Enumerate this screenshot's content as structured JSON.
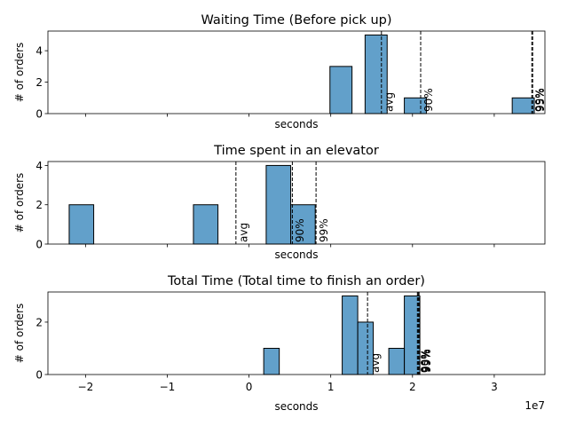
{
  "chart_data": [
    {
      "type": "bar",
      "title": "Waiting Time (Before pick up)",
      "xlabel": "seconds",
      "ylabel": "# of orders",
      "ylim": [
        0,
        5.25
      ],
      "yticks": [
        0,
        2,
        4
      ],
      "bins": [
        {
          "x0": 9.9,
          "x1": 12.6,
          "count": 3
        },
        {
          "x0": 14.2,
          "x1": 16.9,
          "count": 5
        },
        {
          "x0": 19.0,
          "x1": 21.7,
          "count": 1
        },
        {
          "x0": 32.2,
          "x1": 34.9,
          "count": 1
        }
      ],
      "vlines": [
        {
          "x": 16.2,
          "label": "avg"
        },
        {
          "x": 21.0,
          "label": "90%"
        },
        {
          "x": 34.6,
          "label": "99%"
        },
        {
          "x": 34.7,
          "label": "95%"
        }
      ]
    },
    {
      "type": "bar",
      "title": "Time spent in an elevator",
      "xlabel": "seconds",
      "ylabel": "# of orders",
      "ylim": [
        0,
        4.2
      ],
      "yticks": [
        0,
        2,
        4
      ],
      "bins": [
        {
          "x0": -22.0,
          "x1": -19.0,
          "count": 2
        },
        {
          "x0": -6.8,
          "x1": -3.8,
          "count": 2
        },
        {
          "x0": 2.1,
          "x1": 5.1,
          "count": 4
        },
        {
          "x0": 5.1,
          "x1": 8.1,
          "count": 2
        }
      ],
      "vlines": [
        {
          "x": -1.6,
          "label": "avg"
        },
        {
          "x": 5.3,
          "label": "90%"
        },
        {
          "x": 8.2,
          "label": "99%"
        }
      ]
    },
    {
      "type": "bar",
      "title": "Total Time (Total time to finish an order)",
      "xlabel": "seconds",
      "ylabel": "# of orders",
      "ylim": [
        0,
        3.15
      ],
      "yticks": [
        0,
        2
      ],
      "bins": [
        {
          "x0": 1.8,
          "x1": 3.7,
          "count": 1
        },
        {
          "x0": 11.4,
          "x1": 13.3,
          "count": 3
        },
        {
          "x0": 13.3,
          "x1": 15.2,
          "count": 2
        },
        {
          "x0": 17.1,
          "x1": 19.0,
          "count": 1
        },
        {
          "x0": 19.0,
          "x1": 20.9,
          "count": 3
        }
      ],
      "vlines": [
        {
          "x": 14.5,
          "label": "avg"
        },
        {
          "x": 20.6,
          "label": "90%"
        },
        {
          "x": 20.7,
          "label": "95%"
        },
        {
          "x": 20.8,
          "label": "99%"
        }
      ]
    }
  ],
  "shared_x": {
    "xlim": [
      -24.6,
      36.2
    ],
    "xticks": [
      -20,
      -10,
      0,
      10,
      20,
      30
    ],
    "xtick_labels": [
      "−2",
      "−1",
      "0",
      "1",
      "2",
      "3"
    ],
    "offset_label": "1e7"
  }
}
